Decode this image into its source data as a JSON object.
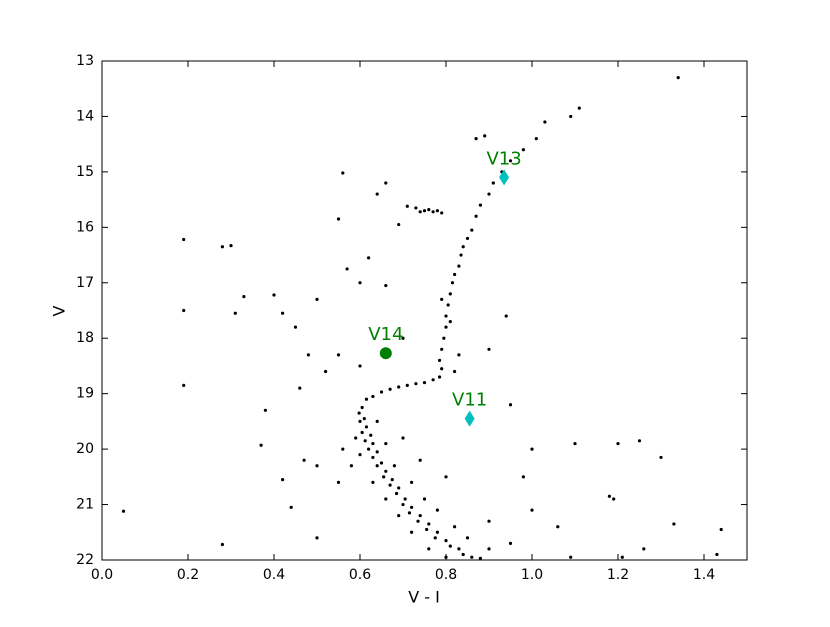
{
  "chart_data": {
    "type": "scatter",
    "xlabel": "V - I",
    "ylabel": "V",
    "xlim": [
      0,
      1.5
    ],
    "ylim": [
      13,
      22
    ],
    "y_inverted": true,
    "xticks": [
      {
        "value": 0,
        "label": "0.0"
      },
      0.2,
      0.4,
      0.6,
      0.8,
      {
        "value": 1,
        "label": "1.0"
      },
      1.2,
      1.4
    ],
    "yticks": [
      13,
      14,
      15,
      16,
      17,
      18,
      19,
      20,
      21,
      22
    ],
    "series": [
      {
        "color": "#000000",
        "x": [
          0.615,
          0.605,
          0.598,
          0.61,
          0.6,
          0.615,
          0.605,
          0.625,
          0.612,
          0.63,
          0.62,
          0.64,
          0.63,
          0.65,
          0.64,
          0.66,
          0.655,
          0.675,
          0.67,
          0.69,
          0.685,
          0.705,
          0.7,
          0.72,
          0.715,
          0.74,
          0.735,
          0.76,
          0.755,
          0.78,
          0.775,
          0.8,
          0.81,
          0.83,
          0.84,
          0.86,
          0.88,
          0.59,
          0.64,
          0.66,
          0.6,
          0.68,
          0.63,
          0.72,
          0.66,
          0.75,
          0.69,
          0.78,
          0.72,
          0.82,
          0.76,
          0.85,
          0.8,
          0.9,
          0.7,
          0.74,
          0.8,
          0.58,
          0.56,
          0.55,
          0.9,
          0.95,
          0.63,
          0.65,
          0.67,
          0.69,
          0.71,
          0.73,
          0.75,
          0.77,
          0.785,
          0.79,
          0.785,
          0.79,
          0.795,
          0.8,
          0.8,
          0.805,
          0.81,
          0.815,
          0.82,
          0.83,
          0.835,
          0.84,
          0.85,
          0.86,
          0.87,
          0.88,
          0.9,
          0.91,
          0.93,
          0.95,
          0.98,
          1.01,
          1.03,
          0.81,
          0.79,
          0.83,
          0.82,
          0.74,
          0.75,
          0.76,
          0.77,
          0.78,
          0.79,
          0.73,
          0.71,
          0.05,
          0.19,
          0.19,
          0.19,
          0.28,
          0.3,
          0.31,
          0.33,
          0.28,
          0.37,
          0.38,
          0.4,
          0.42,
          0.42,
          0.44,
          0.45,
          0.46,
          0.5,
          0.5,
          0.55,
          0.56,
          0.57,
          0.64,
          0.66,
          0.69,
          0.87,
          0.89,
          1.09,
          1.11,
          1.34,
          0.94,
          0.9,
          0.95,
          1.0,
          1.1,
          1.2,
          1.25,
          1.3,
          1.18,
          1.19,
          1.06,
          1.33,
          1.44,
          1.43,
          1.26,
          1.21,
          1.09,
          1.0,
          0.98,
          0.55,
          0.52,
          0.48,
          0.6,
          0.62,
          0.66,
          0.7,
          0.6,
          0.5,
          0.47
        ],
        "y": [
          19.1,
          19.25,
          19.35,
          19.45,
          19.5,
          19.6,
          19.7,
          19.75,
          19.85,
          19.9,
          20.0,
          20.05,
          20.15,
          20.25,
          20.3,
          20.4,
          20.5,
          20.55,
          20.65,
          20.7,
          20.8,
          20.9,
          21.0,
          21.05,
          21.15,
          21.2,
          21.3,
          21.35,
          21.45,
          21.5,
          21.6,
          21.65,
          21.75,
          21.8,
          21.9,
          21.95,
          21.97,
          19.8,
          19.5,
          19.9,
          20.1,
          20.3,
          20.6,
          20.6,
          20.9,
          20.9,
          21.2,
          21.1,
          21.5,
          21.4,
          21.8,
          21.6,
          21.95,
          21.8,
          19.8,
          20.2,
          20.5,
          20.3,
          20.0,
          20.6,
          21.3,
          21.7,
          19.05,
          18.97,
          18.92,
          18.88,
          18.85,
          18.82,
          18.8,
          18.75,
          18.7,
          18.55,
          18.4,
          18.2,
          18.0,
          17.8,
          17.6,
          17.4,
          17.2,
          17.0,
          16.85,
          16.7,
          16.5,
          16.35,
          16.2,
          16.05,
          15.8,
          15.6,
          15.4,
          15.2,
          15.0,
          14.8,
          14.6,
          14.4,
          14.1,
          17.7,
          17.3,
          18.3,
          18.6,
          15.72,
          15.7,
          15.68,
          15.72,
          15.7,
          15.74,
          15.65,
          15.62,
          21.12,
          16.22,
          17.5,
          18.85,
          16.35,
          16.33,
          17.55,
          17.25,
          21.72,
          19.93,
          19.3,
          17.22,
          17.55,
          20.55,
          21.05,
          17.8,
          18.9,
          17.3,
          21.6,
          15.85,
          15.02,
          16.75,
          15.4,
          15.2,
          15.95,
          14.4,
          14.35,
          14.0,
          13.85,
          13.3,
          17.6,
          18.2,
          19.2,
          20.0,
          19.9,
          19.9,
          19.85,
          20.15,
          20.85,
          20.9,
          21.4,
          21.35,
          21.45,
          21.9,
          21.8,
          21.95,
          21.95,
          21.1,
          20.5,
          18.3,
          18.6,
          18.3,
          17.0,
          16.55,
          17.05,
          18.0,
          18.5,
          20.3,
          20.2
        ]
      }
    ],
    "highlights": [
      {
        "label": "V13",
        "x": 0.935,
        "y": 15.1,
        "marker": "diamond",
        "color": "#00bfbf",
        "label_color": "#008000"
      },
      {
        "label": "V14",
        "x": 0.66,
        "y": 18.27,
        "marker": "circle",
        "color": "#008000",
        "label_color": "#008000"
      },
      {
        "label": "V11",
        "x": 0.855,
        "y": 19.45,
        "marker": "diamond",
        "color": "#00bfbf",
        "label_color": "#008000"
      }
    ]
  }
}
